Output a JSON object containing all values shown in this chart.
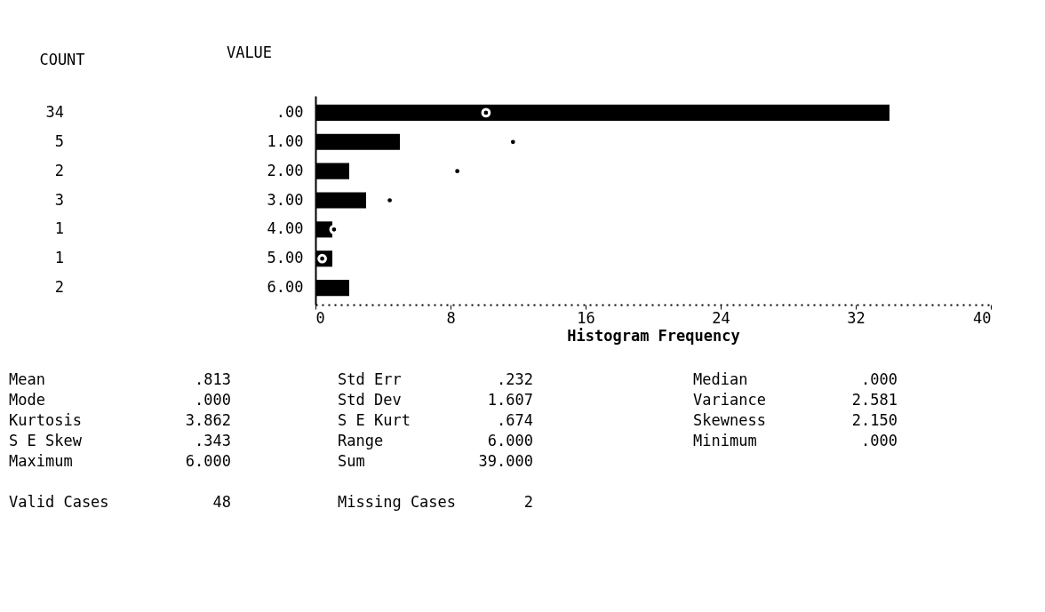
{
  "chart_data": {
    "type": "bar",
    "orientation": "horizontal",
    "xlabel": "Histogram Frequency",
    "ylabel": "VALUE",
    "categories": [
      ".00",
      "1.00",
      "2.00",
      "3.00",
      "4.00",
      "5.00",
      "6.00"
    ],
    "series": [
      {
        "color": "#000000",
        "values": [
          34,
          5,
          2,
          3,
          1,
          1,
          2
        ],
        "value_labels": [
          "34",
          "5",
          "2",
          "3",
          "1",
          "1",
          "2"
        ]
      },
      {
        "type": "scatter",
        "color": "#000000",
        "marker": "circle",
        "values": [
          10.1,
          11.7,
          8.4,
          4.4,
          1.1,
          0.4,
          null
        ]
      }
    ],
    "xlim": [
      0,
      40
    ],
    "xticks": [
      0,
      8,
      16,
      24,
      32,
      40
    ],
    "grid": false,
    "annotations": [
      "COUNT",
      "Mean",
      ".813",
      "Std Err",
      ".232",
      "Median",
      ".000",
      "Mode",
      ".000",
      "Std Dev",
      "1.607",
      "Variance",
      "2.581",
      "Kurtosis",
      "3.862",
      "S E Kurt",
      ".674",
      "Skewness",
      "2.150",
      "S E Skew",
      ".343",
      "Range",
      "6.000",
      "Minimum",
      ".000",
      "Maximum",
      "6.000",
      "Sum",
      "39.000",
      "Valid Cases",
      "48",
      "Missing Cases",
      "2"
    ]
  }
}
